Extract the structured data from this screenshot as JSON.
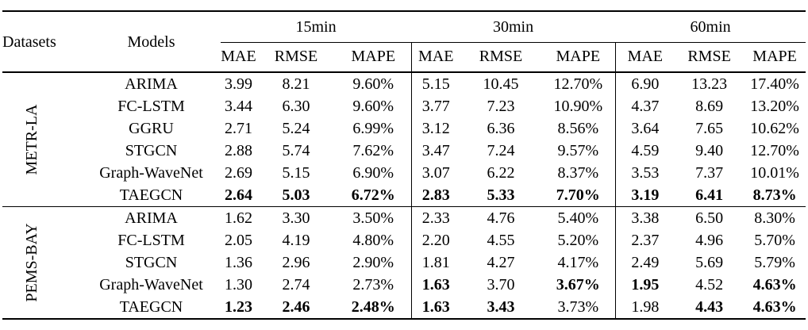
{
  "page": {
    "background_color": "#ffffff",
    "text_color": "#000000"
  },
  "table": {
    "header": {
      "datasets_label": "Datasets",
      "models_label": "Models",
      "time_groups": [
        "15min",
        "30min",
        "60min"
      ],
      "metric_labels": [
        "MAE",
        "RMSE",
        "MAPE"
      ]
    },
    "sections": [
      {
        "dataset": "METR-LA",
        "rows": [
          {
            "model": "ARIMA",
            "values": [
              "3.99",
              "8.21",
              "9.60%",
              "5.15",
              "10.45",
              "12.70%",
              "6.90",
              "13.23",
              "17.40%"
            ],
            "bold": [
              0,
              0,
              0,
              0,
              0,
              0,
              0,
              0,
              0
            ]
          },
          {
            "model": "FC-LSTM",
            "values": [
              "3.44",
              "6.30",
              "9.60%",
              "3.77",
              "7.23",
              "10.90%",
              "4.37",
              "8.69",
              "13.20%"
            ],
            "bold": [
              0,
              0,
              0,
              0,
              0,
              0,
              0,
              0,
              0
            ]
          },
          {
            "model": "GGRU",
            "values": [
              "2.71",
              "5.24",
              "6.99%",
              "3.12",
              "6.36",
              "8.56%",
              "3.64",
              "7.65",
              "10.62%"
            ],
            "bold": [
              0,
              0,
              0,
              0,
              0,
              0,
              0,
              0,
              0
            ]
          },
          {
            "model": "STGCN",
            "values": [
              "2.88",
              "5.74",
              "7.62%",
              "3.47",
              "7.24",
              "9.57%",
              "4.59",
              "9.40",
              "12.70%"
            ],
            "bold": [
              0,
              0,
              0,
              0,
              0,
              0,
              0,
              0,
              0
            ]
          },
          {
            "model": "Graph-WaveNet",
            "values": [
              "2.69",
              "5.15",
              "6.90%",
              "3.07",
              "6.22",
              "8.37%",
              "3.53",
              "7.37",
              "10.01%"
            ],
            "bold": [
              0,
              0,
              0,
              0,
              0,
              0,
              0,
              0,
              0
            ]
          },
          {
            "model": "TAEGCN",
            "values": [
              "2.64",
              "5.03",
              "6.72%",
              "2.83",
              "5.33",
              "7.70%",
              "3.19",
              "6.41",
              "8.73%"
            ],
            "bold": [
              1,
              1,
              1,
              1,
              1,
              1,
              1,
              1,
              1
            ]
          }
        ]
      },
      {
        "dataset": "PEMS-BAY",
        "rows": [
          {
            "model": "ARIMA",
            "values": [
              "1.62",
              "3.30",
              "3.50%",
              "2.33",
              "4.76",
              "5.40%",
              "3.38",
              "6.50",
              "8.30%"
            ],
            "bold": [
              0,
              0,
              0,
              0,
              0,
              0,
              0,
              0,
              0
            ]
          },
          {
            "model": "FC-LSTM",
            "values": [
              "2.05",
              "4.19",
              "4.80%",
              "2.20",
              "4.55",
              "5.20%",
              "2.37",
              "4.96",
              "5.70%"
            ],
            "bold": [
              0,
              0,
              0,
              0,
              0,
              0,
              0,
              0,
              0
            ]
          },
          {
            "model": "STGCN",
            "values": [
              "1.36",
              "2.96",
              "2.90%",
              "1.81",
              "4.27",
              "4.17%",
              "2.49",
              "5.69",
              "5.79%"
            ],
            "bold": [
              0,
              0,
              0,
              0,
              0,
              0,
              0,
              0,
              0
            ]
          },
          {
            "model": "Graph-WaveNet",
            "values": [
              "1.30",
              "2.74",
              "2.73%",
              "1.63",
              "3.70",
              "3.67%",
              "1.95",
              "4.52",
              "4.63%"
            ],
            "bold": [
              0,
              0,
              0,
              1,
              0,
              1,
              1,
              0,
              1
            ]
          },
          {
            "model": "TAEGCN",
            "values": [
              "1.23",
              "2.46",
              "2.48%",
              "1.63",
              "3.43",
              "3.73%",
              "1.98",
              "4.43",
              "4.63%"
            ],
            "bold": [
              1,
              1,
              1,
              1,
              1,
              0,
              0,
              1,
              1
            ]
          }
        ]
      }
    ]
  }
}
